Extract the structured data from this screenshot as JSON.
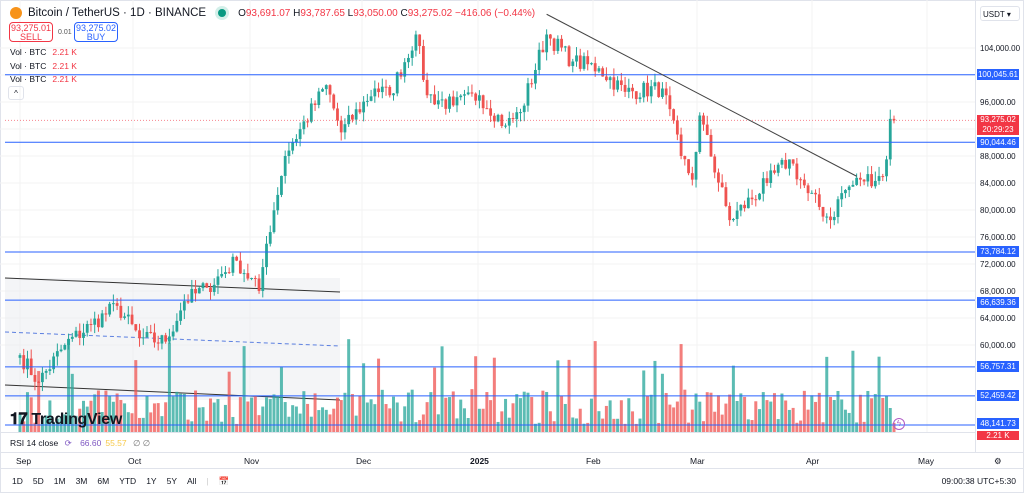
{
  "header": {
    "title": "Bitcoin / TetherUS · 1D · BINANCE",
    "open": "93,691.07",
    "high": "93,787.65",
    "low": "93,050.00",
    "close": "93,275.02",
    "change": "−416.06 (−0.44%)",
    "o": "O",
    "h": "H",
    "l": "L",
    "c": "C"
  },
  "trade": {
    "sell_price": "93,275.01",
    "sell_label": "SELL",
    "buy_price": "93,275.02",
    "buy_label": "BUY",
    "spread": "0.01"
  },
  "volumes": [
    {
      "label": "Vol · BTC",
      "value": "2.21 K"
    },
    {
      "label": "Vol · BTC",
      "value": "2.21 K"
    },
    {
      "label": "Vol · BTC",
      "value": "2.21 K"
    }
  ],
  "collapse_icon": "^",
  "price_axis": {
    "currency": "USDT",
    "ticks": [
      "104,000.00",
      "96,000.00",
      "88,000.00",
      "84,000.00",
      "80,000.00",
      "76,000.00",
      "72,000.00",
      "68,000.00",
      "64,000.00",
      "60,000.00"
    ],
    "levels": [
      "100,045.61",
      "90,044.46",
      "73,784.12",
      "66,639.36",
      "56,757.31",
      "52,459.42",
      "48,141.73"
    ],
    "current_price": "93,275.02",
    "countdown": "20:29:23",
    "volume_badge": "2.21 K"
  },
  "rsi": {
    "label": "RSI 14 close",
    "value1": "66.60",
    "value2": "55.57",
    "extra": "∅ ∅"
  },
  "time_axis": [
    "Sep",
    "Oct",
    "Nov",
    "Dec",
    "2025",
    "Feb",
    "Mar",
    "Apr",
    "May"
  ],
  "ranges": [
    "1D",
    "5D",
    "1M",
    "3M",
    "6M",
    "YTD",
    "1Y",
    "5Y",
    "All"
  ],
  "clock": "09:00:38 UTC+5:30",
  "logo": "TradingView",
  "colors": {
    "up": "#26a69a",
    "down": "#ef5350",
    "level": "#2962ff"
  },
  "chart_data": {
    "type": "candlestick",
    "title": "Bitcoin / TetherUS · 1D · BINANCE",
    "x_range": [
      "2024-09-01",
      "2025-04-23"
    ],
    "ylim": [
      44000,
      110000
    ],
    "anchor_closes": [
      [
        "2024-09-01",
        58500
      ],
      [
        "2024-09-06",
        54500
      ],
      [
        "2024-09-13",
        60000
      ],
      [
        "2024-09-20",
        63000
      ],
      [
        "2024-09-27",
        65800
      ],
      [
        "2024-10-03",
        61000
      ],
      [
        "2024-10-10",
        60500
      ],
      [
        "2024-10-15",
        66500
      ],
      [
        "2024-10-21",
        68500
      ],
      [
        "2024-10-29",
        72500
      ],
      [
        "2024-11-04",
        68000
      ],
      [
        "2024-11-06",
        75000
      ],
      [
        "2024-11-11",
        88000
      ],
      [
        "2024-11-13",
        90000
      ],
      [
        "2024-11-22",
        98500
      ],
      [
        "2024-11-26",
        91500
      ],
      [
        "2024-12-05",
        98000
      ],
      [
        "2024-12-09",
        97000
      ],
      [
        "2024-12-16",
        106000
      ],
      [
        "2024-12-19",
        97000
      ],
      [
        "2024-12-26",
        95500
      ],
      [
        "2025-01-02",
        97000
      ],
      [
        "2025-01-09",
        92500
      ],
      [
        "2025-01-13",
        94500
      ],
      [
        "2025-01-20",
        106000
      ],
      [
        "2025-01-27",
        102000
      ],
      [
        "2025-02-03",
        101000
      ],
      [
        "2025-02-10",
        97500
      ],
      [
        "2025-02-20",
        98000
      ],
      [
        "2025-02-25",
        88000
      ],
      [
        "2025-02-28",
        84500
      ],
      [
        "2025-03-02",
        94000
      ],
      [
        "2025-03-10",
        78500
      ],
      [
        "2025-03-20",
        84000
      ],
      [
        "2025-03-26",
        87500
      ],
      [
        "2025-03-31",
        82500
      ],
      [
        "2025-04-06",
        78500
      ],
      [
        "2025-04-09",
        82500
      ],
      [
        "2025-04-14",
        84500
      ],
      [
        "2025-04-20",
        85000
      ],
      [
        "2025-04-21",
        87500
      ],
      [
        "2025-04-22",
        93500
      ],
      [
        "2025-04-23",
        93275
      ]
    ],
    "horizontal_levels": [
      100045.61,
      90044.46,
      73784.12,
      66639.36,
      56757.31,
      52459.42,
      48141.73
    ],
    "trendline": [
      [
        "2025-01-20",
        109000
      ],
      [
        "2025-04-13",
        85000
      ]
    ]
  }
}
